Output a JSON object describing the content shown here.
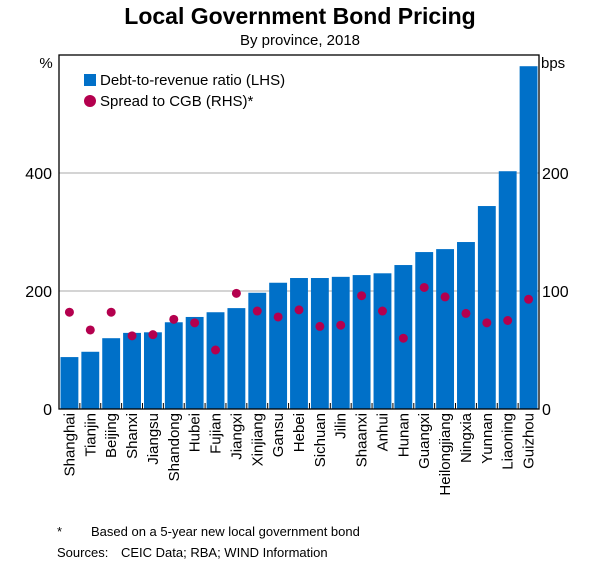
{
  "chart_data": {
    "type": "bar",
    "title": "Local Government Bond Pricing",
    "subtitle": "By province, 2018",
    "categories": [
      "Shanghai",
      "Tianjin",
      "Beijing",
      "Shanxi",
      "Jiangsu",
      "Shandong",
      "Hubei",
      "Fujian",
      "Jiangxi",
      "Xinjiang",
      "Gansu",
      "Hebei",
      "Sichuan",
      "Jilin",
      "Shaanxi",
      "Anhui",
      "Hunan",
      "Guangxi",
      "Heilongjiang",
      "Ningxia",
      "Yunnan",
      "Liaoning",
      "Guizhou"
    ],
    "series": [
      {
        "name": "Debt-to-revenue ratio (LHS)",
        "type": "bar",
        "axis": "left",
        "color": "#0070C8",
        "values": [
          88,
          97,
          120,
          129,
          130,
          147,
          156,
          164,
          171,
          197,
          214,
          222,
          222,
          224,
          227,
          230,
          244,
          266,
          271,
          283,
          344,
          403,
          581
        ]
      },
      {
        "name": "Spread to CGB (RHS)*",
        "type": "scatter",
        "axis": "right",
        "color": "#B4004E",
        "values": [
          82,
          67,
          82,
          62,
          63,
          76,
          73,
          50,
          98,
          83,
          78,
          84,
          70,
          71,
          96,
          83,
          60,
          103,
          95,
          81,
          73,
          75,
          93
        ]
      }
    ],
    "left_axis": {
      "label": "%",
      "ylim": [
        0,
        600
      ],
      "ticks": [
        0,
        200,
        400
      ]
    },
    "right_axis": {
      "label": "bps",
      "ylim": [
        0,
        300
      ],
      "ticks": [
        0,
        100,
        200
      ]
    },
    "grid": true,
    "legend": "top-left"
  },
  "footnotes": {
    "asterisk_marker": "*",
    "asterisk_text": "Based on a 5-year new local government bond",
    "sources_label": "Sources:",
    "sources_text": "CEIC Data; RBA; WIND Information"
  }
}
